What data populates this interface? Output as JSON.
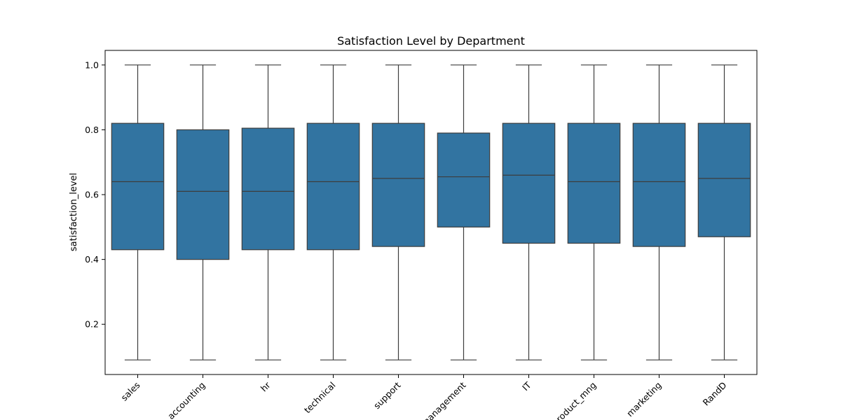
{
  "chart_data": {
    "type": "box",
    "title": "Satisfaction Level by Department",
    "xlabel": "",
    "ylabel": "satisfaction_level",
    "ylim": [
      0.045,
      1.045
    ],
    "yticks": [
      "0.2",
      "0.4",
      "0.6",
      "0.8",
      "1.0"
    ],
    "ytick_values": [
      0.2,
      0.4,
      0.6,
      0.8,
      1.0
    ],
    "grid": false,
    "box_color": "#3274a1",
    "line_color": "#3d3d3d",
    "categories": [
      "sales",
      "accounting",
      "hr",
      "technical",
      "support",
      "management",
      "IT",
      "product_mng",
      "marketing",
      "RandD"
    ],
    "boxes": [
      {
        "min": 0.09,
        "q1": 0.43,
        "median": 0.64,
        "q3": 0.82,
        "max": 1.0
      },
      {
        "min": 0.09,
        "q1": 0.4,
        "median": 0.61,
        "q3": 0.8,
        "max": 1.0
      },
      {
        "min": 0.09,
        "q1": 0.43,
        "median": 0.61,
        "q3": 0.805,
        "max": 1.0
      },
      {
        "min": 0.09,
        "q1": 0.43,
        "median": 0.64,
        "q3": 0.82,
        "max": 1.0
      },
      {
        "min": 0.09,
        "q1": 0.44,
        "median": 0.65,
        "q3": 0.82,
        "max": 1.0
      },
      {
        "min": 0.09,
        "q1": 0.5,
        "median": 0.655,
        "q3": 0.79,
        "max": 1.0
      },
      {
        "min": 0.09,
        "q1": 0.45,
        "median": 0.66,
        "q3": 0.82,
        "max": 1.0
      },
      {
        "min": 0.09,
        "q1": 0.45,
        "median": 0.64,
        "q3": 0.82,
        "max": 1.0
      },
      {
        "min": 0.09,
        "q1": 0.44,
        "median": 0.64,
        "q3": 0.82,
        "max": 1.0
      },
      {
        "min": 0.09,
        "q1": 0.47,
        "median": 0.65,
        "q3": 0.82,
        "max": 1.0
      }
    ]
  }
}
